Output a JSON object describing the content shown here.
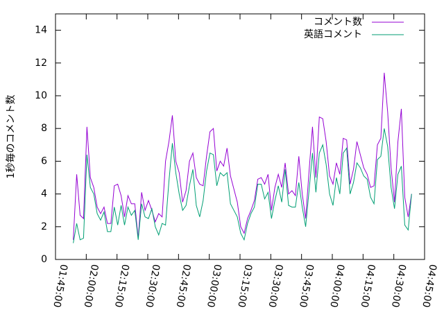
{
  "chart_data": {
    "type": "line",
    "ylabel": "1秒毎のコメント数",
    "x": [
      "01:53:40",
      "01:55:20",
      "01:57:00",
      "01:58:40",
      "02:00:20",
      "02:02:00",
      "02:03:40",
      "02:05:20",
      "02:07:00",
      "02:08:40",
      "02:10:20",
      "02:12:00",
      "02:13:40",
      "02:15:20",
      "02:17:00",
      "02:18:40",
      "02:20:20",
      "02:22:00",
      "02:23:40",
      "02:25:20",
      "02:27:00",
      "02:28:40",
      "02:30:20",
      "02:32:00",
      "02:33:40",
      "02:35:20",
      "02:37:00",
      "02:38:40",
      "02:40:20",
      "02:42:00",
      "02:43:40",
      "02:45:20",
      "02:47:00",
      "02:48:40",
      "02:50:20",
      "02:52:00",
      "02:53:40",
      "02:55:20",
      "02:57:00",
      "02:58:40",
      "03:00:20",
      "03:02:00",
      "03:03:40",
      "03:05:20",
      "03:07:00",
      "03:08:40",
      "03:10:20",
      "03:12:00",
      "03:13:40",
      "03:15:20",
      "03:17:00",
      "03:18:40",
      "03:20:20",
      "03:22:00",
      "03:23:40",
      "03:25:20",
      "03:27:00",
      "03:28:40",
      "03:30:20",
      "03:32:00",
      "03:33:40",
      "03:35:20",
      "03:37:00",
      "03:38:40",
      "03:40:20",
      "03:42:00",
      "03:43:40",
      "03:45:20",
      "03:47:00",
      "03:48:40",
      "03:50:20",
      "03:52:00",
      "03:53:40",
      "03:55:20",
      "03:57:00",
      "03:58:40",
      "04:00:20",
      "04:02:00",
      "04:03:40",
      "04:05:20",
      "04:07:00",
      "04:08:40",
      "04:10:20",
      "04:12:00",
      "04:13:40",
      "04:15:20",
      "04:17:00",
      "04:18:40",
      "04:20:20",
      "04:22:00",
      "04:23:40",
      "04:25:20",
      "04:27:00",
      "04:28:40",
      "04:30:20",
      "04:32:00",
      "04:33:40",
      "04:35:20",
      "04:37:00",
      "04:38:40"
    ],
    "series": [
      {
        "name": "コメント数",
        "color": "#9400d3",
        "values": [
          1.2,
          5.2,
          2.7,
          2.5,
          8.1,
          5.0,
          4.4,
          3.2,
          2.8,
          3.2,
          2.2,
          2.2,
          4.5,
          4.6,
          3.9,
          2.6,
          3.9,
          3.4,
          3.4,
          1.3,
          4.1,
          3.0,
          3.6,
          3.0,
          2.3,
          2.8,
          2.6,
          6.0,
          7.2,
          8.8,
          6.0,
          5.3,
          3.5,
          4.2,
          6.0,
          6.5,
          5.0,
          4.6,
          4.5,
          6.3,
          7.8,
          8.0,
          5.4,
          6.0,
          5.7,
          6.8,
          5.1,
          4.3,
          3.5,
          2.0,
          1.6,
          2.5,
          3.0,
          3.6,
          4.9,
          5.0,
          4.6,
          5.2,
          3.0,
          4.4,
          5.2,
          4.4,
          5.9,
          4.0,
          4.2,
          3.9,
          6.3,
          4.0,
          2.5,
          5.4,
          8.1,
          5.0,
          8.7,
          8.6,
          7.2,
          5.1,
          4.6,
          5.9,
          5.2,
          7.4,
          7.3,
          4.6,
          5.5,
          7.2,
          6.4,
          5.6,
          5.2,
          4.4,
          4.5,
          7.0,
          7.4,
          11.4,
          9.0,
          5.6,
          3.5,
          7.2,
          9.2,
          3.8,
          2.6,
          4.0
        ]
      },
      {
        "name": "英語コメント",
        "color": "#009e73",
        "values": [
          1.0,
          2.2,
          1.2,
          1.3,
          6.4,
          4.4,
          4.0,
          2.8,
          2.4,
          2.9,
          1.7,
          1.7,
          3.2,
          2.1,
          3.3,
          2.1,
          3.2,
          2.7,
          3.0,
          1.2,
          3.4,
          2.6,
          2.5,
          3.1,
          2.0,
          1.5,
          2.2,
          2.1,
          4.8,
          7.1,
          5.3,
          4.0,
          3.0,
          3.3,
          4.5,
          5.5,
          3.3,
          2.6,
          3.6,
          5.4,
          6.5,
          6.4,
          4.5,
          5.3,
          5.1,
          5.3,
          3.4,
          3.0,
          2.6,
          1.6,
          1.2,
          2.2,
          2.8,
          3.2,
          4.6,
          4.6,
          3.7,
          4.1,
          2.5,
          3.6,
          4.5,
          3.5,
          5.5,
          3.3,
          3.2,
          3.2,
          4.7,
          3.2,
          2.0,
          4.2,
          6.5,
          4.1,
          6.5,
          7.0,
          5.8,
          4.0,
          3.3,
          5.0,
          4.0,
          6.5,
          6.8,
          4.0,
          4.7,
          5.9,
          5.6,
          5.1,
          4.9,
          3.8,
          3.4,
          6.1,
          6.3,
          8.0,
          6.9,
          4.4,
          3.1,
          5.2,
          5.7,
          2.1,
          1.8,
          4.0
        ]
      }
    ],
    "xlim": [
      "01:45:00",
      "04:45:00"
    ],
    "xticks": [
      "01:45:00",
      "02:00:00",
      "02:15:00",
      "02:30:00",
      "02:45:00",
      "03:00:00",
      "03:15:00",
      "03:30:00",
      "03:45:00",
      "04:00:00",
      "04:15:00",
      "04:30:00",
      "04:45:00"
    ],
    "ylim": [
      0,
      15
    ],
    "yticks": [
      0,
      2,
      4,
      6,
      8,
      10,
      12,
      14
    ],
    "legend": "top-right"
  }
}
